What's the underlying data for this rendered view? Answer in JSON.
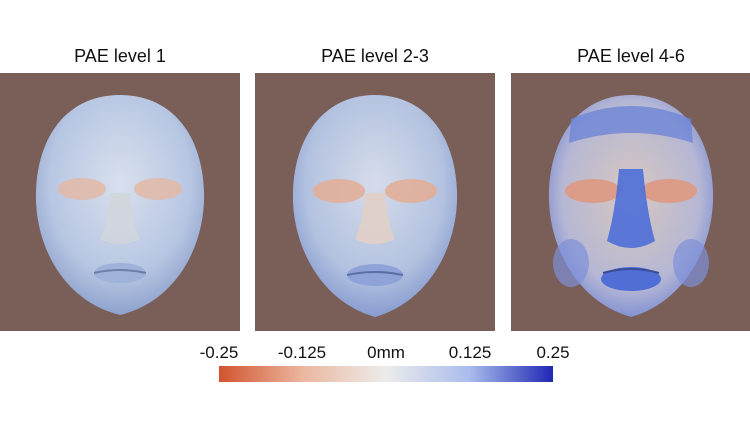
{
  "panels": [
    {
      "title": "PAE level 1"
    },
    {
      "title": "PAE level 2-3"
    },
    {
      "title": "PAE level 4-6"
    }
  ],
  "colorbar": {
    "ticks": [
      "-0.25",
      "-0.125",
      "0mm",
      "0.125",
      "0.25"
    ],
    "colors": [
      "#d2542f",
      "#ebb79f",
      "#ececec",
      "#a9bcec",
      "#1f27b4"
    ]
  },
  "colors": {
    "background": "#7a5e58",
    "face_base": "#c0cde3"
  }
}
